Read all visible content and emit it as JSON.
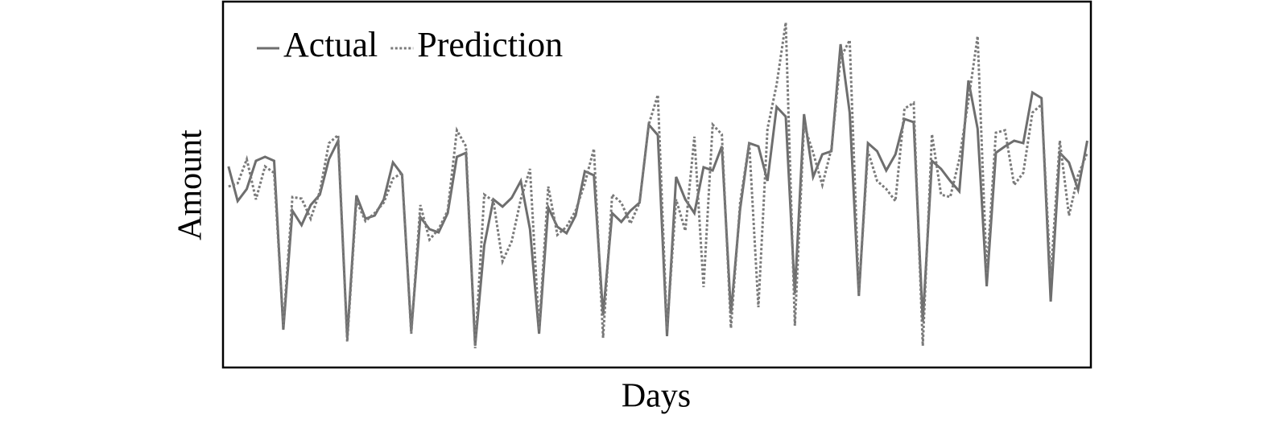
{
  "chart_data": {
    "type": "line",
    "xlabel": "Days",
    "ylabel": "Amount",
    "x": [
      1,
      2,
      3,
      4,
      5,
      6,
      7,
      8,
      9,
      10,
      11,
      12,
      13,
      14,
      15,
      16,
      17,
      18,
      19,
      20,
      21,
      22,
      23,
      24,
      25,
      26,
      27,
      28,
      29,
      30,
      31,
      32,
      33,
      34,
      35,
      36,
      37,
      38,
      39,
      40,
      41,
      42,
      43,
      44,
      45,
      46,
      47,
      48,
      49,
      50,
      51,
      52,
      53,
      54,
      55,
      56,
      57,
      58,
      59,
      60,
      61,
      62,
      63,
      64,
      65,
      66,
      67,
      68,
      69,
      70,
      71,
      72,
      73,
      74,
      75,
      76,
      77,
      78,
      79,
      80,
      81,
      82,
      83,
      84,
      85,
      86,
      87,
      88,
      89,
      90,
      91,
      92,
      93,
      94,
      95
    ],
    "xlim": [
      0.4,
      95.4
    ],
    "ylim": [
      0,
      455
    ],
    "legend": "upper left",
    "series": [
      {
        "name": "Actual",
        "color": "#6e6e6e",
        "style": "solid",
        "values": [
          250,
          207,
          222,
          257,
          262,
          257,
          47,
          195,
          177,
          202,
          215,
          259,
          282,
          37,
          214,
          185,
          189,
          209,
          255,
          240,
          45,
          187,
          172,
          168,
          192,
          262,
          267,
          27,
          152,
          209,
          200,
          211,
          232,
          172,
          42,
          199,
          175,
          167,
          189,
          244,
          239,
          65,
          192,
          181,
          195,
          205,
          302,
          289,
          39,
          237,
          209,
          192,
          249,
          245,
          275,
          67,
          197,
          279,
          275,
          232,
          324,
          312,
          92,
          315,
          237,
          265,
          269,
          402,
          317,
          89,
          279,
          269,
          245,
          265,
          309,
          305,
          57,
          257,
          247,
          232,
          219,
          357,
          297,
          101,
          267,
          275,
          282,
          279,
          342,
          335,
          82,
          267,
          255,
          221,
          282
        ]
      },
      {
        "name": "Prediction",
        "color": "#7a7a7a",
        "style": "dotted",
        "values": [
          225,
          229,
          259,
          209,
          250,
          242,
          52,
          212,
          210,
          185,
          219,
          279,
          289,
          32,
          207,
          182,
          192,
          205,
          235,
          242,
          42,
          202,
          159,
          172,
          195,
          295,
          275,
          24,
          215,
          207,
          132,
          157,
          209,
          247,
          47,
          225,
          165,
          175,
          195,
          229,
          272,
          37,
          215,
          205,
          179,
          205,
          302,
          339,
          47,
          209,
          170,
          287,
          100,
          302,
          290,
          49,
          205,
          279,
          75,
          297,
          352,
          429,
          52,
          302,
          267,
          227,
          272,
          385,
          407,
          92,
          269,
          232,
          222,
          207,
          322,
          329,
          27,
          290,
          215,
          212,
          259,
          332,
          412,
          117,
          292,
          295,
          227,
          242,
          317,
          327,
          112,
          282,
          189,
          239,
          267
        ]
      }
    ]
  }
}
